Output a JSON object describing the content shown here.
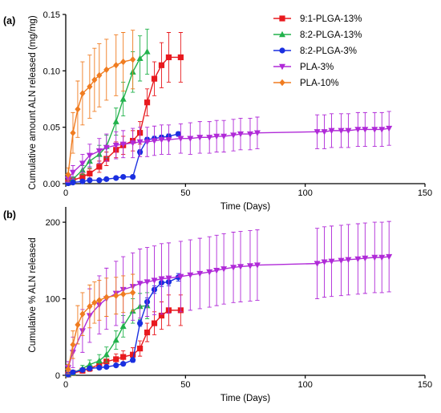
{
  "chart_data": [
    {
      "panel_label": "(a)",
      "type": "line",
      "title": "",
      "xlabel": "Time (Days)",
      "ylabel": "Cumulative amount ALN released (mg/mg)",
      "xlim": [
        0,
        150
      ],
      "ylim": [
        0,
        0.15
      ],
      "xticks": [
        "0",
        "50",
        "100",
        "150"
      ],
      "yticks": [
        "0.00",
        "0.05",
        "0.10",
        "0.15"
      ],
      "grid": false,
      "legend": "top-right",
      "series": [
        {
          "name": "9:1-PLGA-13%",
          "color": "#e8191e",
          "marker": "square",
          "x": [
            1,
            3,
            7,
            10,
            14,
            17,
            21,
            24,
            28,
            31,
            34,
            37,
            40,
            43,
            48
          ],
          "y": [
            0.001,
            0.003,
            0.006,
            0.009,
            0.015,
            0.022,
            0.03,
            0.034,
            0.038,
            0.045,
            0.072,
            0.093,
            0.105,
            0.112,
            0.112
          ],
          "err": [
            0.001,
            0.002,
            0.003,
            0.004,
            0.005,
            0.006,
            0.007,
            0.008,
            0.009,
            0.01,
            0.012,
            0.015,
            0.02,
            0.022,
            0.022
          ]
        },
        {
          "name": "8:2-PLGA-13%",
          "color": "#22b24c",
          "marker": "triangle-up",
          "x": [
            1,
            3,
            7,
            10,
            14,
            17,
            21,
            24,
            28,
            31,
            34
          ],
          "y": [
            0.001,
            0.004,
            0.012,
            0.02,
            0.026,
            0.033,
            0.055,
            0.075,
            0.099,
            0.111,
            0.117
          ],
          "err": [
            0.001,
            0.002,
            0.004,
            0.006,
            0.008,
            0.01,
            0.012,
            0.015,
            0.018,
            0.02,
            0.02
          ]
        },
        {
          "name": "8:2-PLGA-3%",
          "color": "#1a2fe0",
          "marker": "circle",
          "x": [
            1,
            3,
            7,
            10,
            14,
            17,
            21,
            24,
            28,
            31,
            34,
            37,
            40,
            43,
            47
          ],
          "y": [
            0.0003,
            0.001,
            0.002,
            0.003,
            0.003,
            0.004,
            0.005,
            0.006,
            0.006,
            0.028,
            0.039,
            0.04,
            0.041,
            0.042,
            0.044
          ],
          "err": [
            0.0002,
            0.0005,
            0.001,
            0.001,
            0.001,
            0.001,
            0.001,
            0.001,
            0.001,
            0.002,
            0.002,
            0.002,
            0.002,
            0.002,
            0.002
          ]
        },
        {
          "name": "PLA-3%",
          "color": "#b02ad8",
          "marker": "triangle-down",
          "x": [
            1,
            3,
            7,
            10,
            14,
            17,
            21,
            24,
            28,
            31,
            34,
            37,
            40,
            43,
            48,
            52,
            56,
            60,
            63,
            66,
            70,
            73,
            77,
            80,
            105,
            108,
            111,
            115,
            118,
            122,
            125,
            129,
            132,
            135
          ],
          "y": [
            0.004,
            0.01,
            0.018,
            0.025,
            0.029,
            0.032,
            0.034,
            0.035,
            0.036,
            0.037,
            0.037,
            0.038,
            0.039,
            0.039,
            0.04,
            0.04,
            0.041,
            0.041,
            0.042,
            0.042,
            0.043,
            0.044,
            0.044,
            0.045,
            0.046,
            0.046,
            0.047,
            0.047,
            0.047,
            0.048,
            0.048,
            0.048,
            0.048,
            0.049
          ],
          "err": [
            0.003,
            0.006,
            0.008,
            0.01,
            0.011,
            0.012,
            0.012,
            0.012,
            0.013,
            0.013,
            0.013,
            0.013,
            0.013,
            0.013,
            0.013,
            0.014,
            0.014,
            0.014,
            0.014,
            0.014,
            0.014,
            0.014,
            0.014,
            0.014,
            0.015,
            0.015,
            0.015,
            0.015,
            0.015,
            0.015,
            0.015,
            0.015,
            0.015,
            0.015
          ]
        },
        {
          "name": "PLA-10%",
          "color": "#f07c20",
          "marker": "diamond",
          "x": [
            1,
            3,
            5,
            7,
            10,
            12,
            14,
            17,
            21,
            24,
            28
          ],
          "y": [
            0.008,
            0.045,
            0.066,
            0.08,
            0.086,
            0.092,
            0.096,
            0.101,
            0.105,
            0.108,
            0.11
          ],
          "err": [
            0.006,
            0.018,
            0.025,
            0.028,
            0.028,
            0.028,
            0.028,
            0.027,
            0.027,
            0.026,
            0.026
          ]
        }
      ]
    },
    {
      "panel_label": "(b)",
      "type": "line",
      "title": "",
      "xlabel": "Time (Days)",
      "ylabel": "Cumulative % ALN released",
      "xlim": [
        0,
        150
      ],
      "ylim": [
        0,
        220
      ],
      "xticks": [
        "0",
        "50",
        "100",
        "150"
      ],
      "yticks": [
        "0",
        "100",
        "200"
      ],
      "grid": false,
      "legend": "none",
      "series": [
        {
          "name": "9:1-PLGA-13%",
          "color": "#e8191e",
          "marker": "square",
          "x": [
            1,
            3,
            7,
            10,
            14,
            17,
            21,
            24,
            28,
            31,
            34,
            37,
            40,
            43,
            48
          ],
          "y": [
            1,
            3,
            6,
            9,
            14,
            18,
            21,
            24,
            27,
            35,
            56,
            68,
            78,
            85,
            85
          ],
          "err": [
            1,
            2,
            3,
            4,
            5,
            6,
            7,
            8,
            9,
            10,
            12,
            15,
            18,
            20,
            20
          ]
        },
        {
          "name": "8:2-PLGA-13%",
          "color": "#22b24c",
          "marker": "triangle-up",
          "x": [
            1,
            3,
            7,
            10,
            14,
            17,
            21,
            24,
            28,
            31,
            34
          ],
          "y": [
            1,
            3,
            9,
            14,
            19,
            27,
            46,
            64,
            84,
            90,
            91
          ],
          "err": [
            1,
            2,
            4,
            6,
            8,
            10,
            12,
            14,
            16,
            17,
            17
          ]
        },
        {
          "name": "8:2-PLGA-3%",
          "color": "#1a2fe0",
          "marker": "circle",
          "x": [
            1,
            3,
            7,
            10,
            14,
            17,
            21,
            24,
            28,
            31,
            34,
            37,
            40,
            43,
            47
          ],
          "y": [
            1,
            4,
            7,
            9,
            10,
            11,
            13,
            15,
            20,
            68,
            96,
            112,
            121,
            122,
            128
          ],
          "err": [
            0.5,
            1,
            1.5,
            2,
            2,
            2,
            2,
            2,
            3,
            4,
            5,
            5,
            5,
            5,
            5
          ]
        },
        {
          "name": "PLA-3%",
          "color": "#b02ad8",
          "marker": "triangle-down",
          "x": [
            1,
            3,
            7,
            10,
            14,
            17,
            21,
            24,
            28,
            31,
            34,
            37,
            40,
            43,
            48,
            52,
            56,
            60,
            63,
            66,
            70,
            73,
            77,
            80,
            105,
            108,
            111,
            115,
            118,
            122,
            125,
            129,
            132,
            135
          ],
          "y": [
            10,
            30,
            58,
            78,
            92,
            100,
            107,
            112,
            116,
            120,
            122,
            124,
            126,
            127,
            129,
            131,
            133,
            135,
            137,
            139,
            141,
            142,
            143,
            144,
            146,
            148,
            149,
            150,
            151,
            152,
            153,
            154,
            154,
            155
          ],
          "err": [
            8,
            20,
            28,
            35,
            38,
            40,
            42,
            43,
            44,
            45,
            45,
            45,
            46,
            46,
            46,
            46,
            46,
            46,
            46,
            46,
            46,
            46,
            46,
            46,
            46,
            46,
            46,
            46,
            46,
            46,
            46,
            46,
            46,
            46
          ]
        },
        {
          "name": "PLA-10%",
          "color": "#f07c20",
          "marker": "diamond",
          "x": [
            1,
            3,
            5,
            7,
            10,
            12,
            14,
            17,
            21,
            24,
            28
          ],
          "y": [
            8,
            40,
            66,
            80,
            90,
            95,
            98,
            102,
            104,
            106,
            108
          ],
          "err": [
            6,
            18,
            25,
            28,
            28,
            27,
            26,
            25,
            24,
            24,
            24
          ]
        }
      ]
    }
  ]
}
